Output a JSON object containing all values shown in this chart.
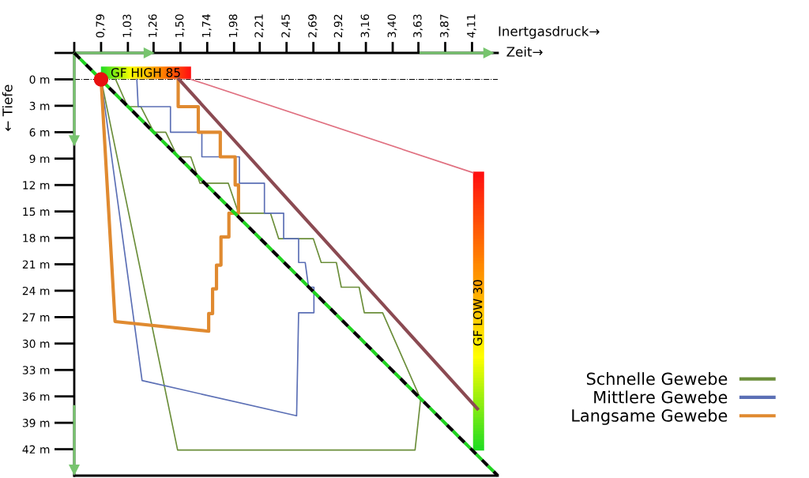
{
  "chart_data": {
    "type": "line",
    "xlabel": "Inertgasdruck→",
    "ylabel": "← Tiefe",
    "xlim": [
      0.55,
      4.34
    ],
    "ylim": [
      45,
      -3
    ],
    "xticks": [
      {
        "value": 0.55,
        "label": null
      },
      {
        "value": 0.79,
        "label": "0,79"
      },
      {
        "value": 1.03,
        "label": "1,03"
      },
      {
        "value": 1.26,
        "label": "1,26"
      },
      {
        "value": 1.5,
        "label": "1,50"
      },
      {
        "value": 1.74,
        "label": "1,74"
      },
      {
        "value": 1.98,
        "label": "1,98"
      },
      {
        "value": 2.21,
        "label": "2,21"
      },
      {
        "value": 2.45,
        "label": "2,45"
      },
      {
        "value": 2.69,
        "label": "2,69"
      },
      {
        "value": 2.92,
        "label": "2,92"
      },
      {
        "value": 3.16,
        "label": "3,16"
      },
      {
        "value": 3.4,
        "label": "3,40"
      },
      {
        "value": 3.63,
        "label": "3,63"
      },
      {
        "value": 3.87,
        "label": "3,87"
      },
      {
        "value": 4.11,
        "label": "4,11"
      }
    ],
    "yticks": [
      {
        "value": -3,
        "label": null
      },
      {
        "value": 0,
        "label": "0 m"
      },
      {
        "value": 3,
        "label": "3 m"
      },
      {
        "value": 6,
        "label": "6 m"
      },
      {
        "value": 9,
        "label": "9 m"
      },
      {
        "value": 12,
        "label": "12 m"
      },
      {
        "value": 15,
        "label": "15 m"
      },
      {
        "value": 18,
        "label": "18 m"
      },
      {
        "value": 21,
        "label": "21 m"
      },
      {
        "value": 24,
        "label": "24 m"
      },
      {
        "value": 27,
        "label": "27 m"
      },
      {
        "value": 30,
        "label": "30 m"
      },
      {
        "value": 33,
        "label": "33 m"
      },
      {
        "value": 36,
        "label": "36 m"
      },
      {
        "value": 39,
        "label": "39 m"
      },
      {
        "value": 42,
        "label": "42 m"
      }
    ],
    "grid": false,
    "legend": "bottom right",
    "series": [
      {
        "name": "Schnelle Gewebe",
        "color": "#6b8e3a",
        "x": [
          0.79,
          1.475,
          3.6,
          3.65,
          3.31,
          3.146,
          3.1,
          2.94,
          2.896,
          2.76,
          2.69,
          2.38,
          2.306,
          2.02,
          1.929,
          1.675,
          1.593,
          1.475,
          1.369,
          1.263,
          1.145,
          1.028,
          0.92
        ],
        "values": [
          0,
          42.1,
          42.1,
          36.3,
          26.5,
          26.5,
          23.6,
          23.6,
          20.8,
          20.8,
          18.1,
          18.1,
          15.2,
          15.2,
          11.8,
          11.8,
          8.8,
          8.8,
          6.0,
          6.0,
          3.1,
          3.1,
          0
        ]
      },
      {
        "name": "Mittlere Gewebe",
        "color": "#5b6fb5",
        "x": [
          0.79,
          1.157,
          2.54,
          2.558,
          2.695,
          2.695,
          2.647,
          2.617,
          2.558,
          2.558,
          2.424,
          2.424,
          2.252,
          2.252,
          2.028,
          2.028,
          1.692,
          1.692,
          1.411,
          1.411,
          1.122,
          1.11
        ],
        "values": [
          0,
          34.2,
          38.2,
          26.5,
          26.5,
          23.6,
          23.6,
          20.8,
          20.8,
          18.1,
          18.1,
          15.2,
          15.2,
          11.8,
          11.8,
          8.8,
          8.8,
          6.0,
          6.0,
          3.1,
          3.1,
          0
        ]
      },
      {
        "name": "Langsame Gewebe",
        "color": "#e08a30",
        "x": [
          0.79,
          0.915,
          1.753,
          1.753,
          1.788,
          1.788,
          1.823,
          1.823,
          1.863,
          1.863,
          1.934,
          1.934,
          2.02,
          2.02,
          1.99,
          1.99,
          1.857,
          1.857,
          1.66,
          1.66,
          1.48,
          1.48
        ],
        "values": [
          0,
          27.5,
          28.6,
          26.6,
          26.6,
          23.8,
          23.8,
          21.1,
          21.1,
          17.9,
          17.9,
          15.2,
          15.2,
          12.0,
          12.0,
          8.8,
          8.8,
          6.0,
          6.0,
          3.1,
          3.1,
          0
        ]
      },
      {
        "color": "#1fd21f",
        "line_style": "dashed",
        "x": [
          0.55,
          4.34
        ],
        "values": [
          -3,
          45
        ]
      },
      {
        "color": "#8b4a52",
        "x": [
          1.487,
          4.158
        ],
        "values": [
          0,
          37.4
        ]
      },
      {
        "color": "#e07080",
        "x": [
          1.595,
          4.12
        ],
        "values": [
          0,
          10.6
        ]
      },
      {
        "type": "scatter",
        "marker": "circle",
        "color": "#e81010",
        "x": [
          0.79
        ],
        "values": [
          0
        ]
      }
    ],
    "ref_lines": [
      {
        "axis": "y",
        "value": 0,
        "color": "#000000",
        "line_style": "dashdot"
      }
    ],
    "annotations": [
      "Zeit→",
      "GF HIGH 85",
      "GF LOW 30"
    ]
  }
}
